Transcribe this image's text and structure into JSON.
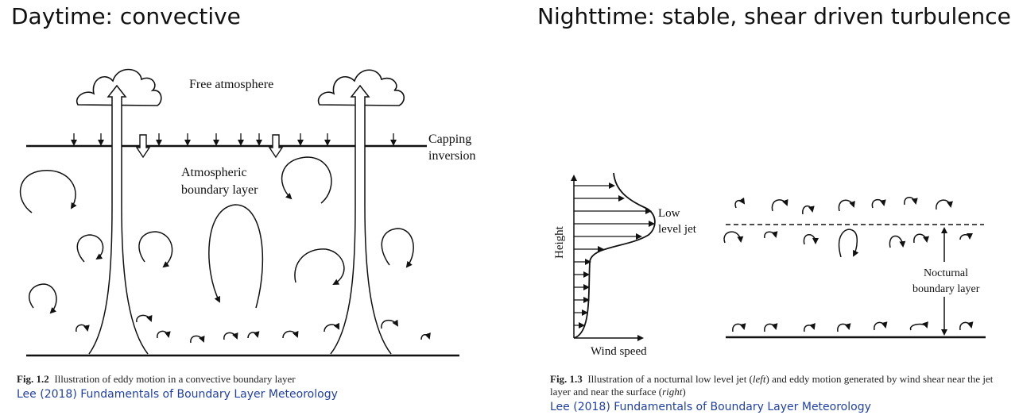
{
  "titles": {
    "left": "Daytime: convective",
    "right": "Nighttime: stable, shear driven turbulence"
  },
  "fig_left": {
    "free_atmosphere": "Free atmosphere",
    "capping_line1": "Capping",
    "capping_line2": "inversion",
    "abl_line1": "Atmospheric",
    "abl_line2": "boundary layer",
    "caption_label": "Fig. 1.2",
    "caption_text": "Illustration of eddy motion in a convective boundary layer",
    "citation": "Lee (2018) Fundamentals of Boundary Layer Meteorology"
  },
  "fig_right": {
    "jet_line1": "Low",
    "jet_line2": "level jet",
    "y_axis": "Height",
    "x_axis": "Wind speed",
    "nbl_line1": "Nocturnal",
    "nbl_line2": "boundary layer",
    "caption_label": "Fig. 1.3",
    "caption_text_a": "Illustration of a nocturnal low level jet (",
    "caption_left": "left",
    "caption_text_b": ") and eddy motion generated by wind shear near the jet layer and near the surface (",
    "caption_right": "right",
    "caption_text_c": ")",
    "citation": "Lee (2018) Fundamentals of Boundary Layer Meteorology"
  },
  "colors": {
    "ink": "#111111",
    "citation": "#1f3fa8"
  }
}
